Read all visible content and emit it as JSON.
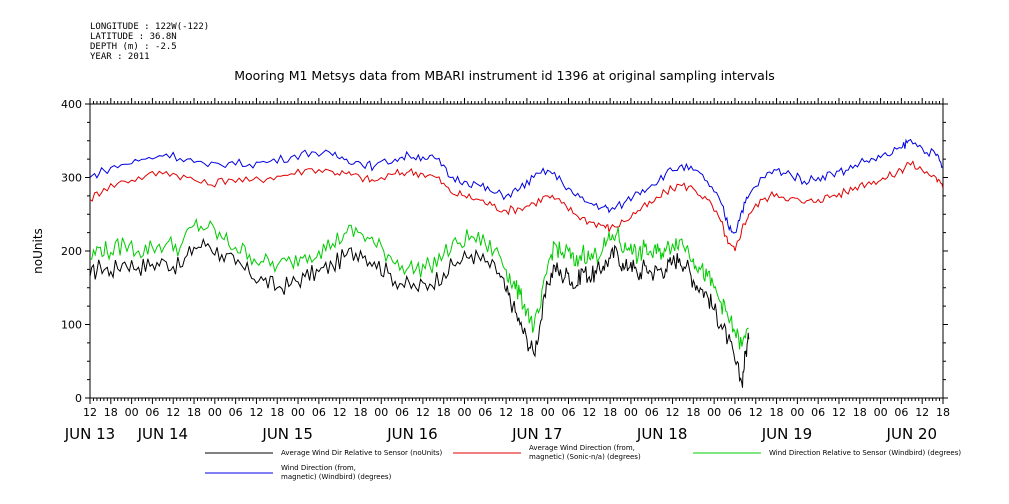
{
  "header": {
    "longitude": "LONGITUDE : 122W(-122)",
    "latitude": "LATITUDE : 36.8N",
    "depth": "DEPTH (m) : -2.5",
    "year": "YEAR : 2011"
  },
  "chart_data": {
    "type": "line",
    "title": "Mooring M1 Metsys data from MBARI instrument id 1396 at original sampling intervals",
    "ylabel": "noUnits",
    "ylim": [
      0,
      400
    ],
    "yticks": [
      0,
      100,
      200,
      300,
      400
    ],
    "xlim_hours": [
      0,
      173
    ],
    "xtick_labels": [
      "12",
      "18",
      "00",
      "06",
      "12",
      "18",
      "00",
      "06",
      "12",
      "18",
      "00",
      "06",
      "12",
      "18",
      "00",
      "06",
      "12",
      "18",
      "00",
      "06",
      "12",
      "18",
      "00",
      "06",
      "12",
      "18",
      "00",
      "06",
      "12",
      "18",
      "00",
      "06",
      "12",
      "18",
      "00",
      "06",
      "12",
      "18",
      "00",
      "06",
      "12",
      "18",
      "00",
      "06",
      "12"
    ],
    "day_labels": [
      "JUN 13",
      "JUN 14",
      "JUN 15",
      "JUN 16",
      "JUN 17",
      "JUN 18",
      "JUN 19",
      "JUN 20"
    ],
    "day_label_hours": [
      0,
      24,
      48,
      72,
      96,
      120,
      144,
      168
    ],
    "grid": false,
    "legend_position": "bottom",
    "series": [
      {
        "name": "Average Wind Dir Relative to Sensor (noUnits)",
        "color": "#000000",
        "points": [
          [
            0,
            165
          ],
          [
            3,
            180
          ],
          [
            6,
            172
          ],
          [
            10,
            185
          ],
          [
            14,
            178
          ],
          [
            18,
            182
          ],
          [
            22,
            185
          ],
          [
            26,
            178
          ],
          [
            30,
            205
          ],
          [
            34,
            210
          ],
          [
            38,
            195
          ],
          [
            42,
            182
          ],
          [
            46,
            170
          ],
          [
            50,
            160
          ],
          [
            54,
            150
          ],
          [
            58,
            155
          ],
          [
            62,
            165
          ],
          [
            66,
            172
          ],
          [
            70,
            180
          ],
          [
            74,
            195
          ],
          [
            78,
            200
          ],
          [
            82,
            185
          ],
          [
            86,
            170
          ],
          [
            90,
            155
          ],
          [
            94,
            150
          ],
          [
            98,
            155
          ],
          [
            102,
            170
          ],
          [
            106,
            185
          ],
          [
            110,
            195
          ],
          [
            114,
            185
          ],
          [
            118,
            170
          ],
          [
            120,
            145
          ],
          [
            122,
            125
          ],
          [
            124,
            100
          ],
          [
            126,
            80
          ],
          [
            128,
            60
          ],
          [
            130,
            105
          ],
          [
            132,
            155
          ],
          [
            134,
            180
          ],
          [
            136,
            165
          ],
          [
            138,
            170
          ],
          [
            140,
            150
          ],
          [
            142,
            175
          ],
          [
            144,
            165
          ],
          [
            146,
            170
          ],
          [
            148,
            180
          ],
          [
            150,
            190
          ],
          [
            152,
            200
          ],
          [
            154,
            175
          ],
          [
            156,
            185
          ],
          [
            158,
            165
          ],
          [
            160,
            180
          ],
          [
            162,
            170
          ],
          [
            164,
            175
          ],
          [
            166,
            175
          ],
          [
            168,
            185
          ],
          [
            170,
            190
          ],
          [
            172,
            180
          ],
          [
            174,
            160
          ],
          [
            176,
            150
          ],
          [
            178,
            140
          ],
          [
            180,
            120
          ],
          [
            182,
            100
          ],
          [
            184,
            80
          ],
          [
            186,
            50
          ],
          [
            188,
            20
          ],
          [
            189,
            60
          ],
          [
            190,
            80
          ]
        ]
      },
      {
        "name": "Average Wind Direction (from, magnetic) (Sonic-n/a) (degrees)",
        "color": "#e00000",
        "points": [
          [
            0,
            270
          ],
          [
            4,
            285
          ],
          [
            10,
            295
          ],
          [
            16,
            302
          ],
          [
            22,
            308
          ],
          [
            28,
            300
          ],
          [
            34,
            290
          ],
          [
            40,
            298
          ],
          [
            46,
            295
          ],
          [
            52,
            300
          ],
          [
            58,
            305
          ],
          [
            64,
            312
          ],
          [
            70,
            308
          ],
          [
            74,
            305
          ],
          [
            78,
            300
          ],
          [
            82,
            295
          ],
          [
            88,
            305
          ],
          [
            92,
            308
          ],
          [
            96,
            305
          ],
          [
            100,
            300
          ],
          [
            104,
            280
          ],
          [
            108,
            275
          ],
          [
            112,
            270
          ],
          [
            116,
            262
          ],
          [
            120,
            255
          ],
          [
            124,
            258
          ],
          [
            128,
            265
          ],
          [
            132,
            275
          ],
          [
            136,
            265
          ],
          [
            140,
            250
          ],
          [
            144,
            240
          ],
          [
            148,
            235
          ],
          [
            150,
            230
          ],
          [
            154,
            240
          ],
          [
            158,
            255
          ],
          [
            162,
            265
          ],
          [
            166,
            280
          ],
          [
            170,
            290
          ],
          [
            174,
            285
          ],
          [
            178,
            270
          ],
          [
            182,
            240
          ],
          [
            184,
            210
          ],
          [
            186,
            200
          ],
          [
            188,
            230
          ],
          [
            190,
            250
          ],
          [
            194,
            270
          ],
          [
            198,
            278
          ],
          [
            202,
            272
          ],
          [
            206,
            265
          ],
          [
            210,
            270
          ],
          [
            214,
            275
          ],
          [
            218,
            280
          ],
          [
            222,
            290
          ],
          [
            226,
            295
          ],
          [
            230,
            300
          ],
          [
            234,
            310
          ],
          [
            236,
            320
          ],
          [
            240,
            310
          ],
          [
            244,
            300
          ],
          [
            246,
            285
          ]
        ]
      },
      {
        "name": "Wind Direction Relative to Sensor (Windbird) (degrees)",
        "color": "#00cc00",
        "points": [
          [
            0,
            190
          ],
          [
            3,
            205
          ],
          [
            6,
            198
          ],
          [
            10,
            210
          ],
          [
            14,
            200
          ],
          [
            18,
            205
          ],
          [
            22,
            210
          ],
          [
            26,
            205
          ],
          [
            30,
            235
          ],
          [
            34,
            232
          ],
          [
            38,
            218
          ],
          [
            42,
            205
          ],
          [
            46,
            195
          ],
          [
            50,
            185
          ],
          [
            54,
            180
          ],
          [
            58,
            185
          ],
          [
            62,
            195
          ],
          [
            66,
            200
          ],
          [
            70,
            210
          ],
          [
            74,
            225
          ],
          [
            78,
            225
          ],
          [
            82,
            210
          ],
          [
            86,
            195
          ],
          [
            90,
            180
          ],
          [
            94,
            175
          ],
          [
            98,
            180
          ],
          [
            102,
            195
          ],
          [
            106,
            210
          ],
          [
            110,
            220
          ],
          [
            114,
            210
          ],
          [
            118,
            195
          ],
          [
            120,
            175
          ],
          [
            122,
            155
          ],
          [
            124,
            140
          ],
          [
            126,
            120
          ],
          [
            128,
            95
          ],
          [
            130,
            125
          ],
          [
            132,
            180
          ],
          [
            134,
            210
          ],
          [
            136,
            195
          ],
          [
            138,
            200
          ],
          [
            140,
            180
          ],
          [
            142,
            200
          ],
          [
            144,
            190
          ],
          [
            146,
            195
          ],
          [
            148,
            205
          ],
          [
            150,
            215
          ],
          [
            152,
            225
          ],
          [
            154,
            200
          ],
          [
            156,
            210
          ],
          [
            158,
            190
          ],
          [
            160,
            205
          ],
          [
            162,
            195
          ],
          [
            164,
            200
          ],
          [
            166,
            200
          ],
          [
            168,
            210
          ],
          [
            170,
            215
          ],
          [
            172,
            205
          ],
          [
            174,
            190
          ],
          [
            176,
            175
          ],
          [
            178,
            165
          ],
          [
            180,
            150
          ],
          [
            182,
            130
          ],
          [
            184,
            110
          ],
          [
            186,
            90
          ],
          [
            188,
            70
          ],
          [
            190,
            95
          ]
        ]
      },
      {
        "name": "Wind Direction (from, magnetic) (Windbird) (degrees)",
        "color": "#0000e0",
        "points": [
          [
            0,
            300
          ],
          [
            4,
            310
          ],
          [
            10,
            318
          ],
          [
            16,
            325
          ],
          [
            22,
            332
          ],
          [
            28,
            325
          ],
          [
            34,
            315
          ],
          [
            40,
            320
          ],
          [
            46,
            318
          ],
          [
            52,
            322
          ],
          [
            58,
            328
          ],
          [
            64,
            335
          ],
          [
            70,
            330
          ],
          [
            74,
            325
          ],
          [
            78,
            320
          ],
          [
            82,
            315
          ],
          [
            88,
            325
          ],
          [
            92,
            330
          ],
          [
            96,
            328
          ],
          [
            100,
            325
          ],
          [
            104,
            300
          ],
          [
            108,
            295
          ],
          [
            112,
            290
          ],
          [
            116,
            280
          ],
          [
            120,
            275
          ],
          [
            124,
            285
          ],
          [
            128,
            300
          ],
          [
            132,
            310
          ],
          [
            136,
            295
          ],
          [
            140,
            275
          ],
          [
            144,
            265
          ],
          [
            148,
            260
          ],
          [
            150,
            255
          ],
          [
            154,
            265
          ],
          [
            158,
            280
          ],
          [
            162,
            290
          ],
          [
            166,
            305
          ],
          [
            170,
            315
          ],
          [
            174,
            310
          ],
          [
            178,
            295
          ],
          [
            182,
            265
          ],
          [
            184,
            235
          ],
          [
            186,
            225
          ],
          [
            188,
            255
          ],
          [
            190,
            275
          ],
          [
            194,
            300
          ],
          [
            198,
            310
          ],
          [
            202,
            305
          ],
          [
            206,
            295
          ],
          [
            210,
            300
          ],
          [
            214,
            305
          ],
          [
            218,
            310
          ],
          [
            222,
            320
          ],
          [
            226,
            325
          ],
          [
            230,
            330
          ],
          [
            234,
            340
          ],
          [
            236,
            350
          ],
          [
            240,
            340
          ],
          [
            244,
            330
          ],
          [
            246,
            315
          ]
        ]
      }
    ],
    "legend_rows": [
      [
        "Average Wind Dir Relative to Sensor (noUnits)",
        "Average Wind Direction (from,|magnetic) (Sonic-n/a) (degrees)",
        "Wind Direction Relative to Sensor (Windbird) (degrees)"
      ],
      [
        "Wind Direction (from,|magnetic) (Windbird) (degrees)"
      ]
    ]
  }
}
